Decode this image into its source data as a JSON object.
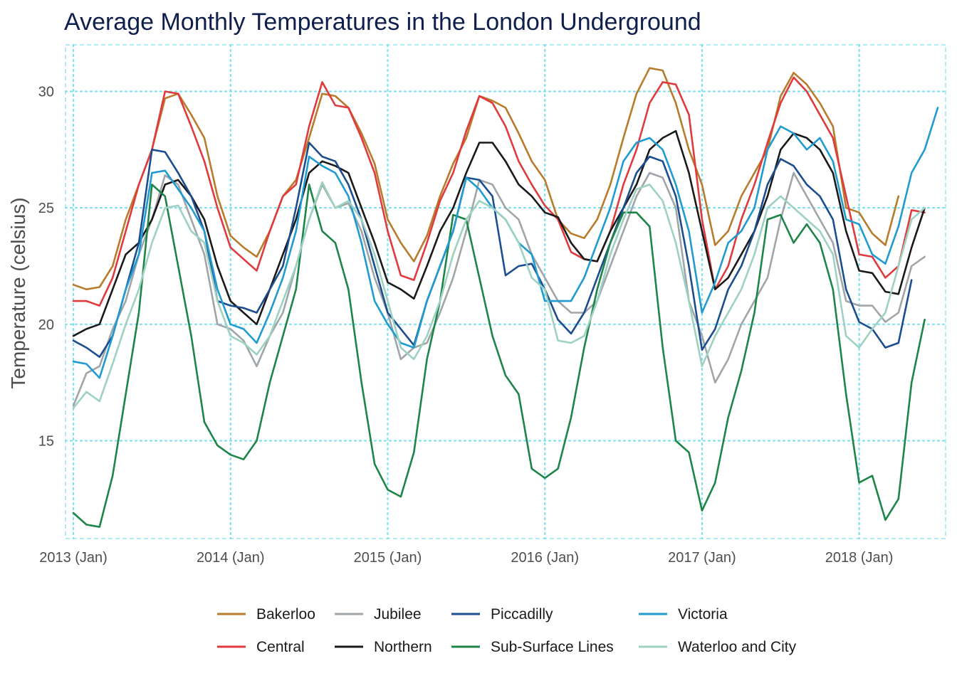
{
  "chart_data": {
    "type": "line",
    "title": "Average Monthly Temperatures in the London Underground",
    "xlabel": "",
    "ylabel": "Temperature (celsius)",
    "ylim": [
      10.8,
      32
    ],
    "xlim": [
      2012.97,
      2018.55
    ],
    "yticks": [
      15,
      20,
      25,
      30
    ],
    "xticks": [
      {
        "value": 2013,
        "label": "2013 (Jan)"
      },
      {
        "value": 2014,
        "label": "2014 (Jan)"
      },
      {
        "value": 2015,
        "label": "2015 (Jan)"
      },
      {
        "value": 2016,
        "label": "2016 (Jan)"
      },
      {
        "value": 2017,
        "label": "2017 (Jan)"
      },
      {
        "value": 2018,
        "label": "2018 (Jan)"
      }
    ],
    "grid": true,
    "legend_position": "bottom",
    "x_start": "2013 (Jan)",
    "series": [
      {
        "name": "Bakerloo",
        "color": "#b87b2b",
        "values": [
          21.7,
          21.5,
          21.6,
          22.5,
          24.5,
          26.0,
          27.5,
          29.7,
          29.9,
          29.0,
          28.0,
          25.5,
          23.8,
          23.3,
          22.9,
          24.0,
          25.5,
          26.2,
          28.0,
          29.9,
          29.8,
          29.3,
          28.2,
          26.9,
          24.5,
          23.5,
          22.7,
          23.8,
          25.5,
          26.9,
          28.0,
          29.8,
          29.6,
          29.3,
          28.2,
          27.0,
          26.2,
          24.5,
          23.9,
          23.7,
          24.5,
          26.0,
          28.0,
          29.9,
          31.0,
          30.9,
          29.5,
          27.5,
          26.0,
          23.4,
          24.0,
          25.5,
          26.5,
          27.5,
          29.8,
          30.8,
          30.3,
          29.5,
          28.5,
          25.0,
          24.8,
          23.9,
          23.4,
          25.5
        ]
      },
      {
        "name": "Central",
        "color": "#e03a3e",
        "values": [
          21.0,
          21.0,
          20.8,
          22.0,
          24.0,
          26.0,
          27.5,
          30.0,
          29.9,
          28.5,
          27.0,
          25.0,
          23.3,
          22.8,
          22.3,
          24.0,
          25.5,
          26.0,
          28.5,
          30.4,
          29.4,
          29.3,
          28.0,
          26.5,
          24.0,
          22.1,
          21.9,
          23.5,
          25.3,
          26.5,
          28.3,
          29.8,
          29.5,
          28.5,
          27.0,
          26.0,
          25.1,
          24.5,
          23.1,
          22.8,
          22.7,
          24.0,
          26.0,
          27.5,
          29.5,
          30.4,
          30.3,
          29.0,
          24.5,
          21.5,
          22.5,
          24.5,
          26.0,
          27.8,
          29.5,
          30.6,
          30.0,
          29.0,
          28.0,
          25.5,
          23.0,
          22.9,
          22.0,
          22.5,
          24.9,
          24.8
        ]
      },
      {
        "name": "Jubilee",
        "color": "#a0a5a9",
        "values": [
          16.5,
          17.9,
          18.2,
          19.8,
          21.0,
          23.0,
          24.5,
          26.4,
          26.0,
          24.5,
          23.0,
          20.0,
          19.8,
          19.3,
          18.2,
          19.5,
          20.5,
          22.5,
          24.5,
          26.0,
          25.0,
          25.2,
          24.0,
          22.0,
          20.5,
          18.5,
          19.0,
          19.2,
          20.5,
          22.0,
          24.0,
          26.2,
          26.0,
          25.0,
          24.5,
          23.0,
          22.0,
          21.0,
          20.5,
          20.5,
          21.0,
          22.5,
          24.0,
          25.5,
          26.5,
          26.3,
          25.0,
          21.0,
          19.5,
          17.5,
          18.5,
          20.0,
          21.0,
          22.0,
          24.5,
          26.5,
          25.5,
          24.5,
          23.5,
          21.0,
          20.8,
          20.8,
          20.1,
          20.5,
          22.5,
          22.9
        ]
      },
      {
        "name": "Northern",
        "color": "#1a1a1a",
        "values": [
          19.5,
          19.8,
          20.0,
          21.5,
          23.0,
          23.5,
          24.5,
          26.0,
          26.2,
          25.5,
          24.5,
          22.5,
          21.0,
          20.5,
          20.0,
          21.5,
          23.0,
          24.5,
          26.5,
          27.0,
          26.8,
          26.5,
          25.0,
          23.5,
          21.8,
          21.5,
          21.1,
          22.5,
          24.0,
          25.0,
          26.5,
          27.8,
          27.8,
          27.0,
          26.0,
          25.5,
          24.8,
          24.6,
          23.5,
          22.8,
          22.7,
          24.0,
          25.0,
          26.0,
          27.5,
          28.0,
          28.3,
          26.5,
          24.0,
          21.5,
          22.0,
          23.0,
          24.0,
          25.5,
          27.5,
          28.2,
          28.0,
          27.5,
          26.5,
          24.0,
          22.3,
          22.2,
          21.4,
          21.3,
          23.3,
          25.0
        ]
      },
      {
        "name": "Piccadilly",
        "color": "#1b4d8f",
        "values": [
          19.3,
          19.0,
          18.6,
          19.5,
          21.5,
          23.5,
          27.5,
          27.4,
          26.5,
          25.5,
          24.0,
          21.0,
          20.8,
          20.7,
          20.5,
          21.5,
          22.5,
          25.0,
          27.8,
          27.2,
          27.0,
          26.0,
          24.5,
          22.5,
          20.5,
          19.8,
          19.1,
          21.0,
          22.5,
          24.0,
          26.3,
          26.2,
          25.5,
          22.1,
          22.5,
          22.6,
          21.5,
          20.2,
          19.6,
          20.5,
          22.0,
          23.5,
          25.0,
          26.5,
          27.2,
          27.0,
          25.5,
          22.5,
          18.9,
          19.8,
          21.5,
          22.5,
          24.0,
          26.0,
          27.1,
          26.8,
          26.0,
          25.5,
          24.5,
          21.5,
          20.1,
          19.8,
          19.0,
          19.2,
          21.9
        ]
      },
      {
        "name": "Sub-Surface Lines",
        "color": "#1d8547",
        "values": [
          11.9,
          11.4,
          11.3,
          13.5,
          17.0,
          20.5,
          26.0,
          25.5,
          22.5,
          19.5,
          15.8,
          14.8,
          14.4,
          14.2,
          15.0,
          17.5,
          19.5,
          21.5,
          26.0,
          24.0,
          23.5,
          21.5,
          17.5,
          14.0,
          12.9,
          12.6,
          14.5,
          18.5,
          21.0,
          24.7,
          24.5,
          22.0,
          19.5,
          17.8,
          17.0,
          13.8,
          13.4,
          13.8,
          16.0,
          19.0,
          21.5,
          23.5,
          24.8,
          24.8,
          24.2,
          19.0,
          15.0,
          14.5,
          12.0,
          13.2,
          16.0,
          18.0,
          20.5,
          24.5,
          24.7,
          23.5,
          24.3,
          23.5,
          21.5,
          17.0,
          13.2,
          13.5,
          11.6,
          12.5,
          17.5,
          20.2
        ]
      },
      {
        "name": "Victoria",
        "color": "#1f9bd1",
        "values": [
          18.4,
          18.3,
          17.7,
          19.5,
          21.5,
          23.0,
          26.5,
          26.6,
          25.8,
          25.0,
          24.0,
          21.5,
          20.0,
          19.8,
          19.2,
          20.5,
          22.0,
          24.0,
          27.2,
          26.8,
          26.5,
          25.5,
          23.5,
          21.0,
          20.0,
          19.2,
          19.0,
          21.0,
          22.5,
          24.0,
          26.3,
          25.8,
          25.0,
          24.5,
          23.5,
          23.0,
          21.0,
          21.0,
          21.0,
          22.0,
          23.5,
          25.0,
          27.0,
          27.8,
          28.0,
          27.5,
          26.0,
          24.0,
          20.5,
          21.8,
          23.5,
          24.0,
          25.0,
          27.5,
          28.5,
          28.2,
          27.5,
          28.0,
          27.0,
          24.5,
          24.3,
          23.0,
          22.6,
          24.2,
          26.5,
          27.5,
          29.3
        ]
      },
      {
        "name": "Waterloo and City",
        "color": "#9dd1c2",
        "values": [
          16.4,
          17.1,
          16.7,
          18.3,
          20.0,
          21.5,
          23.5,
          25.0,
          25.1,
          24.0,
          23.5,
          21.0,
          19.5,
          19.2,
          18.7,
          19.5,
          21.0,
          22.5,
          24.5,
          26.1,
          25.0,
          25.3,
          24.5,
          23.0,
          21.0,
          19.0,
          18.5,
          19.5,
          21.0,
          23.0,
          24.5,
          25.3,
          25.0,
          24.5,
          23.5,
          22.0,
          21.5,
          19.3,
          19.2,
          19.5,
          21.0,
          23.0,
          24.5,
          25.8,
          26.0,
          25.3,
          23.5,
          21.0,
          18.2,
          19.5,
          20.5,
          21.5,
          23.0,
          25.0,
          25.5,
          25.0,
          24.5,
          24.0,
          23.0,
          19.5,
          19.0,
          19.8,
          20.5,
          22.5,
          24.5,
          25.0
        ]
      }
    ]
  }
}
